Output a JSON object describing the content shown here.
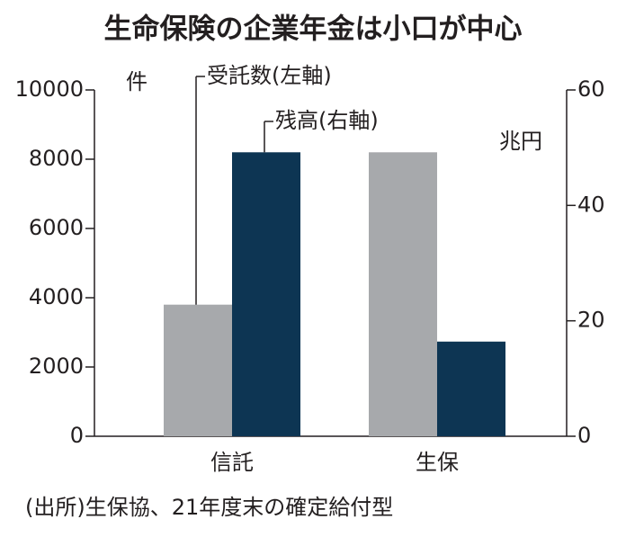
{
  "chart_data": {
    "type": "bar",
    "title": "生命保険の企業年金は小口が中心",
    "categories": [
      "信託",
      "生保"
    ],
    "series": [
      {
        "name": "受託数(左軸)",
        "color": "#a7a9ac",
        "values": [
          3800,
          8200
        ]
      },
      {
        "name": "残高(右軸)",
        "color": "#0d3553",
        "values": [
          49.2,
          16.4
        ],
        "axis": "y2"
      }
    ],
    "ylabel": "件",
    "y2label": "兆円",
    "ylim": [
      0,
      10000
    ],
    "yticks": [
      0,
      2000,
      4000,
      6000,
      8000,
      10000
    ],
    "y2lim": [
      0,
      60
    ],
    "y2ticks": [
      0,
      20,
      40,
      60
    ],
    "source": "(出所)生保協、21年度末の確定給付型"
  }
}
